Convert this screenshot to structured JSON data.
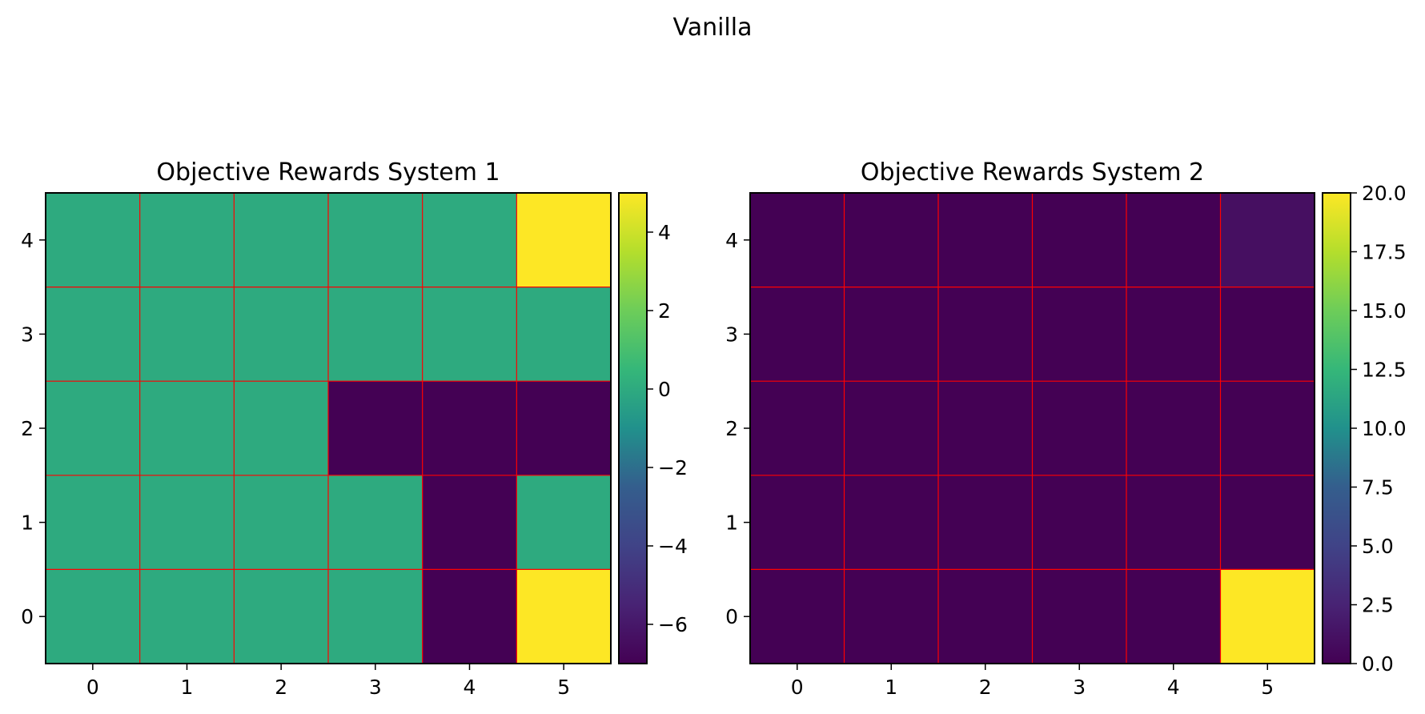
{
  "figure_title": "Vanilla",
  "chart_data": [
    {
      "type": "heatmap",
      "title": "Objective Rewards System 1",
      "xlabel": "",
      "ylabel": "",
      "x_ticks": [
        0,
        1,
        2,
        3,
        4,
        5
      ],
      "y_ticks": [
        0,
        1,
        2,
        3,
        4
      ],
      "y_origin": "bottom",
      "grid": true,
      "grid_color": "#ff0000",
      "colormap": "viridis",
      "vmin": -7,
      "vmax": 5,
      "colorbar_ticks": [
        4,
        2,
        0,
        -2,
        -4,
        -6
      ],
      "colorbar_tick_labels": [
        "4",
        "2",
        "0",
        "−2",
        "−4",
        "−6"
      ],
      "rows": [
        {
          "y": 4,
          "values": [
            0,
            0,
            0,
            0,
            0,
            5
          ]
        },
        {
          "y": 3,
          "values": [
            0,
            0,
            0,
            0,
            0,
            0
          ]
        },
        {
          "y": 2,
          "values": [
            0,
            0,
            0,
            -7,
            -7,
            -7
          ]
        },
        {
          "y": 1,
          "values": [
            0,
            0,
            0,
            0,
            -7,
            0
          ]
        },
        {
          "y": 0,
          "values": [
            0,
            0,
            0,
            0,
            -7,
            5
          ]
        }
      ]
    },
    {
      "type": "heatmap",
      "title": "Objective Rewards System 2",
      "xlabel": "",
      "ylabel": "",
      "x_ticks": [
        0,
        1,
        2,
        3,
        4,
        5
      ],
      "y_ticks": [
        0,
        1,
        2,
        3,
        4
      ],
      "y_origin": "bottom",
      "grid": true,
      "grid_color": "#ff0000",
      "colormap": "viridis",
      "vmin": 0,
      "vmax": 20,
      "colorbar_ticks": [
        20,
        17.5,
        15,
        12.5,
        10,
        7.5,
        5,
        2.5,
        0
      ],
      "colorbar_tick_labels": [
        "20.0",
        "17.5",
        "15.0",
        "12.5",
        "10.0",
        "7.5",
        "5.0",
        "2.5",
        "0.0"
      ],
      "rows": [
        {
          "y": 4,
          "values": [
            0,
            0,
            0,
            0,
            0,
            1
          ]
        },
        {
          "y": 3,
          "values": [
            0,
            0,
            0,
            0,
            0,
            0
          ]
        },
        {
          "y": 2,
          "values": [
            0,
            0,
            0,
            0,
            0,
            0
          ]
        },
        {
          "y": 1,
          "values": [
            0,
            0,
            0,
            0,
            0,
            0
          ]
        },
        {
          "y": 0,
          "values": [
            0,
            0,
            0,
            0,
            0,
            20
          ]
        }
      ]
    }
  ]
}
